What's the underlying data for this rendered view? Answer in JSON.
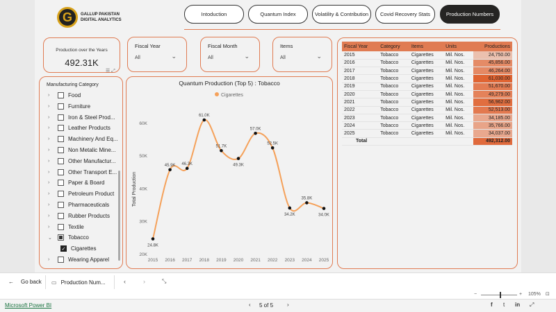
{
  "brand": {
    "line1": "GALLUP PAKISTAN",
    "line2": "DIGITAL ANALYTICS"
  },
  "nav": [
    {
      "label": "Intoduction",
      "active": false
    },
    {
      "label": "Quantum Index",
      "active": false
    },
    {
      "label": "Volatility & Contribution",
      "active": false
    },
    {
      "label": "Covid Recovery Stats",
      "active": false
    },
    {
      "label": "Production Numbers",
      "active": true
    }
  ],
  "kpi": {
    "label": "Production over the Years",
    "value": "492.31K"
  },
  "slicers": {
    "fiscal_year": {
      "title": "Fiscal Year",
      "value": "All"
    },
    "fiscal_month": {
      "title": "Fiscal Month",
      "value": "All"
    },
    "items": {
      "title": "Items",
      "value": "All"
    }
  },
  "categories": {
    "title": "Manufacturing Category",
    "items": [
      {
        "label": "Food",
        "state": "none"
      },
      {
        "label": "Furniture",
        "state": "none"
      },
      {
        "label": "Iron & Steel Prod...",
        "state": "none"
      },
      {
        "label": "Leather Products",
        "state": "none"
      },
      {
        "label": "Machinery And Eq...",
        "state": "none"
      },
      {
        "label": "Non Metalic Mine...",
        "state": "none"
      },
      {
        "label": "Other Manufactur...",
        "state": "none"
      },
      {
        "label": "Other Transport E...",
        "state": "none"
      },
      {
        "label": "Paper & Board",
        "state": "none"
      },
      {
        "label": "Petroleum Product",
        "state": "none"
      },
      {
        "label": "Pharmaceuticals",
        "state": "none"
      },
      {
        "label": "Rubber Products",
        "state": "none"
      },
      {
        "label": "Textile",
        "state": "none"
      },
      {
        "label": "Tobacco",
        "state": "partial"
      },
      {
        "label": "Cigarettes",
        "state": "checked",
        "child": true
      },
      {
        "label": "Wearing Apparel",
        "state": "none"
      }
    ]
  },
  "chart_data": {
    "type": "line",
    "title": "Quantum Production (Top 5) : Tobacco",
    "ylabel": "Total Production",
    "xlabel": "",
    "legend": "Cigarettes",
    "x": [
      "2015",
      "2016",
      "2017",
      "2018",
      "2019",
      "2020",
      "2021",
      "2022",
      "2023",
      "2024",
      "2025"
    ],
    "series": [
      {
        "name": "Cigarettes",
        "values": [
          24750,
          45856,
          46264,
          61030,
          51670,
          49279,
          56962,
          52513,
          34185,
          35766,
          34037
        ]
      }
    ],
    "data_labels": [
      "24.8K",
      "45.9K",
      "46.3K",
      "61.0K",
      "51.7K",
      "49.3K",
      "57.0K",
      "52.5K",
      "34.2K",
      "35.8K",
      "34.0K"
    ],
    "yticks": [
      20000,
      30000,
      40000,
      50000,
      60000
    ],
    "ytick_labels": [
      "20K",
      "30K",
      "40K",
      "50K",
      "60K"
    ],
    "ylim": [
      20000,
      64000
    ],
    "color": "#f5a15a"
  },
  "table": {
    "headers": [
      "Fiscal Year",
      "Category",
      "Items",
      "Units",
      "Productions"
    ],
    "rows": [
      [
        "2015",
        "Tobacco",
        "Cigarettes",
        "Mil. Nos.",
        "24,750.00"
      ],
      [
        "2016",
        "Tobacco",
        "Cigarettes",
        "Mil. Nos.",
        "45,856.00"
      ],
      [
        "2017",
        "Tobacco",
        "Cigarettes",
        "Mil. Nos.",
        "46,264.00"
      ],
      [
        "2018",
        "Tobacco",
        "Cigarettes",
        "Mil. Nos.",
        "61,030.00"
      ],
      [
        "2019",
        "Tobacco",
        "Cigarettes",
        "Mil. Nos.",
        "51,670.00"
      ],
      [
        "2020",
        "Tobacco",
        "Cigarettes",
        "Mil. Nos.",
        "49,279.00"
      ],
      [
        "2021",
        "Tobacco",
        "Cigarettes",
        "Mil. Nos.",
        "56,962.00"
      ],
      [
        "2022",
        "Tobacco",
        "Cigarettes",
        "Mil. Nos.",
        "52,513.00"
      ],
      [
        "2023",
        "Tobacco",
        "Cigarettes",
        "Mil. Nos.",
        "34,185.00"
      ],
      [
        "2024",
        "Tobacco",
        "Cigarettes",
        "Mil. Nos.",
        "35,766.00"
      ],
      [
        "2025",
        "Tobacco",
        "Cigarettes",
        "Mil. Nos.",
        "34,037.00"
      ]
    ],
    "values": [
      24750,
      45856,
      46264,
      61030,
      51670,
      49279,
      56962,
      52513,
      34185,
      35766,
      34037
    ],
    "total_label": "Total",
    "total_value": "492,312.00"
  },
  "bottombar": {
    "back_label": "Go back",
    "page_tab": "Production Num..."
  },
  "footer": {
    "brand": "Microsoft Power BI",
    "page_indicator": "5 of 5",
    "zoom": "105%"
  }
}
